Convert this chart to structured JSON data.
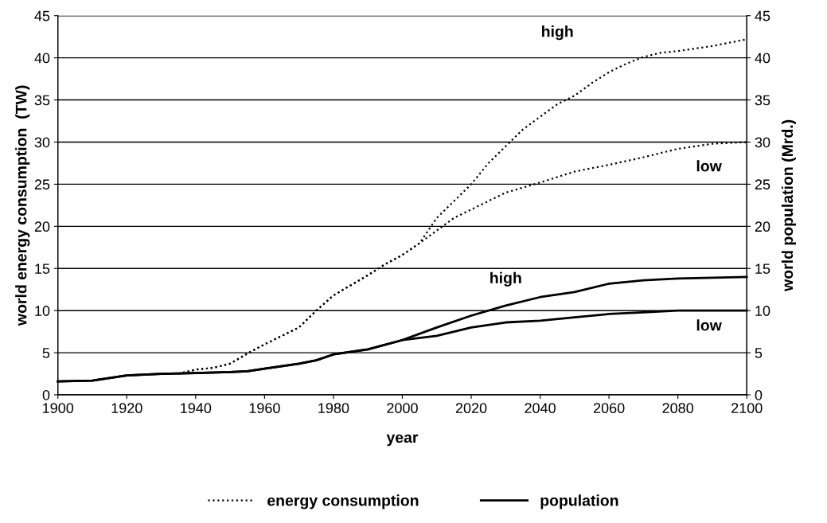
{
  "chart_data": {
    "type": "line",
    "xlabel": "year",
    "ylabel": "world energy consumption  (TW)",
    "y2label": "world population (Mrd.)",
    "xlim": [
      1900,
      2100
    ],
    "xticks": [
      1900,
      1920,
      1940,
      1960,
      1980,
      2000,
      2020,
      2040,
      2060,
      2080,
      2100
    ],
    "ylim": [
      0,
      45
    ],
    "yticks": [
      0,
      5,
      10,
      15,
      20,
      25,
      30,
      35,
      40,
      45
    ],
    "y2lim": [
      0,
      45
    ],
    "y2ticks": [
      0,
      5,
      10,
      15,
      20,
      25,
      30,
      35,
      40,
      45
    ],
    "grid": "y",
    "legend": "bottom",
    "marker": "none",
    "series": [
      {
        "name": "energy consumption",
        "color": "#000000",
        "line_style": "dotted",
        "x": [
          1935,
          1940,
          1945,
          1950,
          1955,
          1960,
          1965,
          1970,
          1975,
          1980,
          1985,
          1990,
          1995,
          2000,
          2005,
          2010,
          2015,
          2020,
          2025,
          2030,
          2035,
          2040,
          2045,
          2050,
          2055,
          2060,
          2065,
          2070,
          2075,
          2080,
          2090,
          2100
        ],
        "values": [
          2.5,
          3.0,
          3.2,
          3.7,
          4.9,
          6.0,
          7.0,
          8.0,
          10.0,
          11.8,
          13.0,
          14.2,
          15.5,
          16.6,
          18.0,
          21,
          23,
          25,
          27.5,
          29.5,
          31.5,
          33,
          34.5,
          35.5,
          37,
          38.3,
          39.3,
          40.1,
          40.6,
          40.8,
          41.4,
          42.2
        ]
      },
      {
        "color": "#000000",
        "line_style": "dotted",
        "x": [
          1935,
          1940,
          1945,
          1950,
          1955,
          1960,
          1965,
          1970,
          1975,
          1980,
          1985,
          1990,
          1995,
          2000,
          2005,
          2010,
          2015,
          2020,
          2025,
          2030,
          2040,
          2050,
          2060,
          2070,
          2080,
          2090,
          2100
        ],
        "values": [
          2.5,
          3.0,
          3.2,
          3.7,
          4.9,
          6.0,
          7.0,
          8.0,
          10.0,
          11.8,
          13.0,
          14.2,
          15.5,
          16.6,
          18.0,
          19.5,
          21,
          22,
          23,
          24,
          25.2,
          26.5,
          27.3,
          28.2,
          29.2,
          29.8,
          30
        ]
      },
      {
        "name": "population",
        "color": "#000000",
        "line_style": "solid",
        "x": [
          1900,
          1910,
          1915,
          1920,
          1930,
          1940,
          1950,
          1955,
          1960,
          1970,
          1975,
          1980,
          1990,
          2000,
          2010,
          2020,
          2030,
          2040,
          2050,
          2060,
          2070,
          2080,
          2100
        ],
        "values": [
          1.6,
          1.7,
          2.0,
          2.3,
          2.5,
          2.6,
          2.7,
          2.8,
          3.1,
          3.7,
          4.1,
          4.8,
          5.4,
          6.5,
          8.0,
          9.4,
          10.6,
          11.6,
          12.2,
          13.2,
          13.6,
          13.8,
          14.0
        ]
      },
      {
        "color": "#000000",
        "line_style": "solid",
        "x": [
          1900,
          1910,
          1915,
          1920,
          1930,
          1940,
          1950,
          1955,
          1960,
          1970,
          1975,
          1980,
          1990,
          2000,
          2010,
          2020,
          2030,
          2040,
          2050,
          2060,
          2070,
          2080,
          2100
        ],
        "values": [
          1.6,
          1.7,
          2.0,
          2.3,
          2.5,
          2.6,
          2.7,
          2.8,
          3.1,
          3.7,
          4.1,
          4.8,
          5.4,
          6.5,
          7.0,
          8.0,
          8.6,
          8.8,
          9.2,
          9.6,
          9.8,
          10,
          10
        ]
      }
    ],
    "annotations": [
      "high",
      "low",
      "high",
      "low"
    ]
  }
}
